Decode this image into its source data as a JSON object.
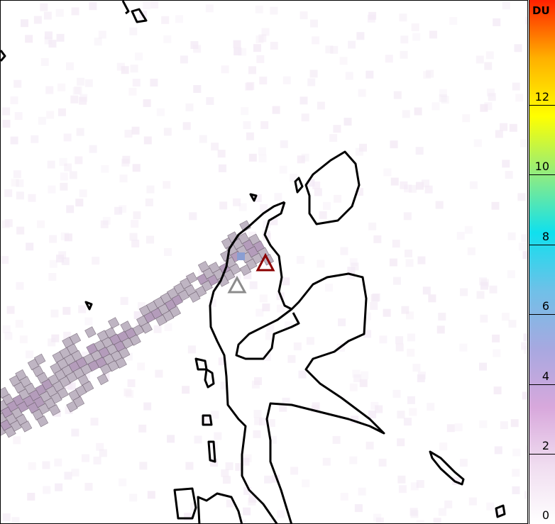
{
  "map": {
    "plume_colors": {
      "light": "#f3e9f5",
      "mid": "#b5a9b9",
      "dense": "#a78bb0",
      "peak": "#8a9ed2"
    },
    "volcanoes": [
      {
        "name": "active-volcano",
        "color": "#8b0000"
      },
      {
        "name": "secondary-volcano",
        "color": "#8c8c8c"
      }
    ]
  },
  "colorbar": {
    "unit": "DU",
    "min": 0,
    "max": 15,
    "ticks": [
      "0",
      "2",
      "4",
      "6",
      "8",
      "10",
      "12"
    ],
    "colors": [
      "#ffffff",
      "#f0ddf0",
      "#d8a8dc",
      "#a8a8e0",
      "#70c0e8",
      "#10e0ee",
      "#90ec80",
      "#ffff00",
      "#ffb000",
      "#ff2000"
    ]
  }
}
